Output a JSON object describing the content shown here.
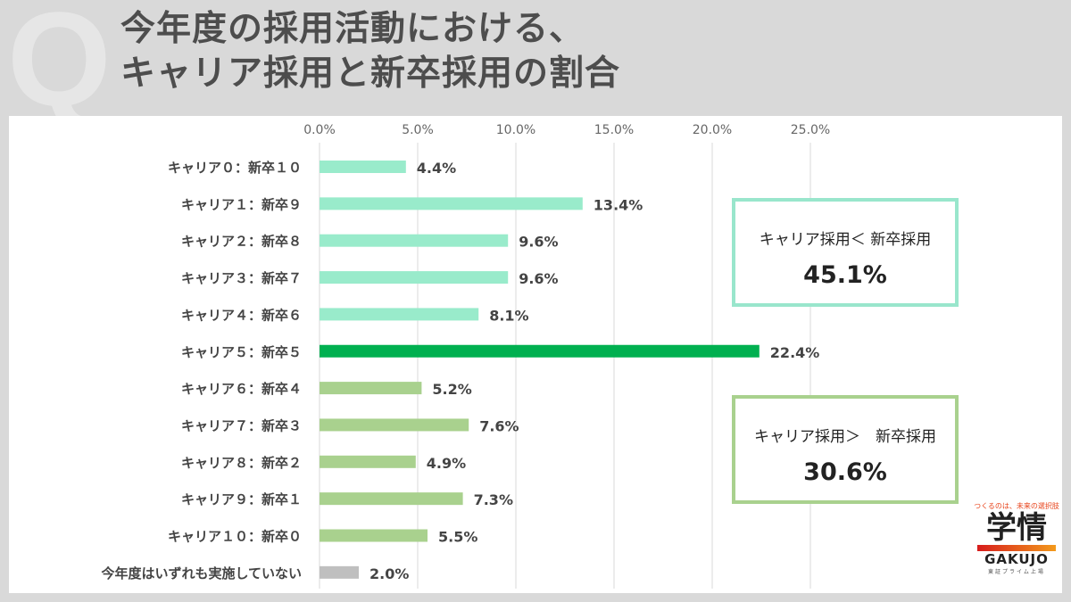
{
  "header": {
    "q": "Q",
    "line1": "今年度の採用活動における、",
    "line2": "キャリア採用と新卒採用の割合"
  },
  "chart_data": {
    "type": "bar",
    "orientation": "horizontal",
    "categories": [
      "キャリア０：新卒１０",
      "キャリア１：新卒９",
      "キャリア２：新卒８",
      "キャリア３：新卒７",
      "キャリア４：新卒６",
      "キャリア５：新卒５",
      "キャリア６：新卒４",
      "キャリア７：新卒３",
      "キャリア８：新卒２",
      "キャリア９：新卒１",
      "キャリア１０：新卒０",
      "今年度はいずれも実施していない"
    ],
    "values": [
      4.4,
      13.4,
      9.6,
      9.6,
      8.1,
      22.4,
      5.2,
      7.6,
      4.9,
      7.3,
      5.5,
      2.0
    ],
    "labels": [
      "4.4%",
      "13.4%",
      "9.6%",
      "9.6%",
      "8.1%",
      "22.4%",
      "5.2%",
      "7.6%",
      "4.9%",
      "7.3%",
      "5.5%",
      "2.0%"
    ],
    "colors": [
      "#99ebcb",
      "#99ebcb",
      "#99ebcb",
      "#99ebcb",
      "#99ebcb",
      "#00b050",
      "#a9d18e",
      "#a9d18e",
      "#a9d18e",
      "#a9d18e",
      "#a9d18e",
      "#bfbfbf"
    ],
    "xticks": [
      "0.0%",
      "5.0%",
      "10.0%",
      "15.0%",
      "20.0%",
      "25.0%"
    ],
    "xtick_values": [
      0,
      5,
      10,
      15,
      20,
      25
    ],
    "xlim": [
      0,
      25
    ],
    "grid": true
  },
  "summary": [
    {
      "label": "キャリア採用＜ 新卒採用",
      "value": "45.1%",
      "color": "#99e6cc"
    },
    {
      "label": "キャリア採用＞　新卒採用",
      "value": "30.6%",
      "color": "#a9d18e"
    }
  ],
  "logo": {
    "tagline": "つくるのは、未来の選択肢",
    "kanji": "学情",
    "name": "GAKUJO",
    "sub": "東証プライム上場"
  }
}
